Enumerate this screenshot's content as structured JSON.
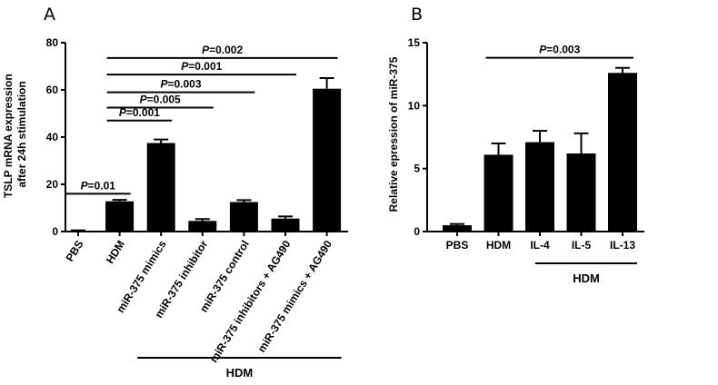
{
  "chart_data": [
    {
      "panel": "A",
      "type": "bar",
      "ylabel_lines": [
        "TSLP mRNA expression",
        "after 24h  stimulation"
      ],
      "ylim": [
        0,
        80
      ],
      "yticks": [
        0,
        20,
        40,
        60,
        80
      ],
      "categories": [
        "PBS",
        "HDM",
        "miR-375 mimics",
        "miR-375 inhibitor",
        "miR-375 control",
        "miR-375 inhibitors + AG490",
        "miR-375 mimics + AG490"
      ],
      "values": [
        0.3,
        12.8,
        37.5,
        4.5,
        12.5,
        5.5,
        60.5
      ],
      "errors": [
        0.2,
        0.6,
        1.5,
        0.8,
        0.8,
        0.9,
        4.5
      ],
      "group_label": "HDM",
      "comparisons": [
        {
          "from": 0,
          "to": 1,
          "p_prefix": "P",
          "p_value": "=0.01",
          "y": 16
        },
        {
          "from": 1,
          "to": 2,
          "p_prefix": "P",
          "p_value": "=0.001",
          "y": 47
        },
        {
          "from": 1,
          "to": 3,
          "p_prefix": "P",
          "p_value": "=0.005",
          "y": 52.5
        },
        {
          "from": 1,
          "to": 4,
          "p_prefix": "P",
          "p_value": "=0.003",
          "y": 59
        },
        {
          "from": 1,
          "to": 5,
          "p_prefix": "P",
          "p_value": "=0.001",
          "y": 66.5
        },
        {
          "from": 1,
          "to": 6,
          "p_prefix": "P",
          "p_value": "=0.002",
          "y": 73.5
        }
      ]
    },
    {
      "panel": "B",
      "type": "bar",
      "ylabel": "Relative epression of miR-375",
      "ylim": [
        0,
        15
      ],
      "yticks": [
        0,
        5,
        10,
        15
      ],
      "categories": [
        "PBS",
        "HDM",
        "IL-4",
        "IL-5",
        "IL-13"
      ],
      "values": [
        0.5,
        6.1,
        7.1,
        6.2,
        12.6
      ],
      "errors": [
        0.1,
        0.9,
        0.9,
        1.6,
        0.4
      ],
      "group_label": "HDM",
      "comparisons": [
        {
          "from": 1,
          "to": 4,
          "p_prefix": "P",
          "p_value": "=0.003",
          "y": 13.8
        }
      ]
    }
  ]
}
